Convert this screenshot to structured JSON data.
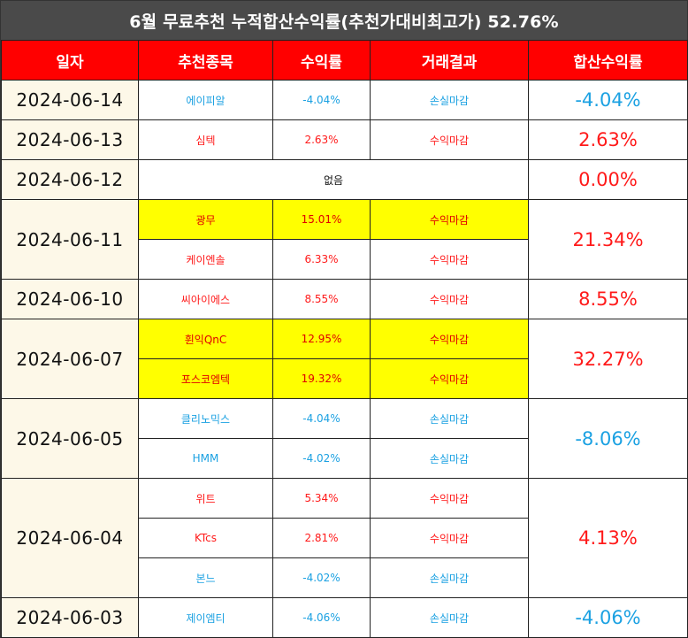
{
  "title": "6월 무료추천 누적합산수익률(추천가대비최고가) 52.76%",
  "headers": {
    "date": "일자",
    "stock": "추천종목",
    "return": "수익률",
    "result": "거래결과",
    "total": "합산수익률"
  },
  "rows": [
    {
      "date": "2024-06-14",
      "stock": "에이피알",
      "ret": "-4.04%",
      "result": "손실마감",
      "total": "-4.04%"
    },
    {
      "date": "2024-06-13",
      "stock": "심텍",
      "ret": "2.63%",
      "result": "수익마감",
      "total": "2.63%"
    },
    {
      "date": "2024-06-12",
      "none_label": "없음",
      "total": "0.00%"
    },
    {
      "date": "2024-06-11",
      "total": "21.34%",
      "a": {
        "stock": "광무",
        "ret": "15.01%",
        "result": "수익마감"
      },
      "b": {
        "stock": "케이엔솔",
        "ret": "6.33%",
        "result": "수익마감"
      }
    },
    {
      "date": "2024-06-10",
      "stock": "씨아이에스",
      "ret": "8.55%",
      "result": "수익마감",
      "total": "8.55%"
    },
    {
      "date": "2024-06-07",
      "total": "32.27%",
      "a": {
        "stock": "휜익QnC",
        "ret": "12.95%",
        "result": "수익마감"
      },
      "b": {
        "stock": "포스코엠텍",
        "ret": "19.32%",
        "result": "수익마감"
      }
    },
    {
      "date": "2024-06-05",
      "total": "-8.06%",
      "a": {
        "stock": "클리노믹스",
        "ret": "-4.04%",
        "result": "손실마감"
      },
      "b": {
        "stock": "HMM",
        "ret": "-4.02%",
        "result": "손실마감"
      }
    },
    {
      "date": "2024-06-04",
      "total": "4.13%",
      "a": {
        "stock": "위트",
        "ret": "5.34%",
        "result": "수익마감"
      },
      "b": {
        "stock": "KTcs",
        "ret": "2.81%",
        "result": "수익마감"
      },
      "c": {
        "stock": "본느",
        "ret": "-4.02%",
        "result": "손실마감"
      }
    },
    {
      "date": "2024-06-03",
      "stock": "제이엠티",
      "ret": "-4.06%",
      "result": "손실마감",
      "total": "-4.06%"
    }
  ],
  "colors": {
    "profit": "#ff1a1a",
    "loss": "#1ba1e2",
    "highlight": "#ffff00",
    "header_bg": "#ff0000",
    "title_bg": "#4a4a4a"
  }
}
